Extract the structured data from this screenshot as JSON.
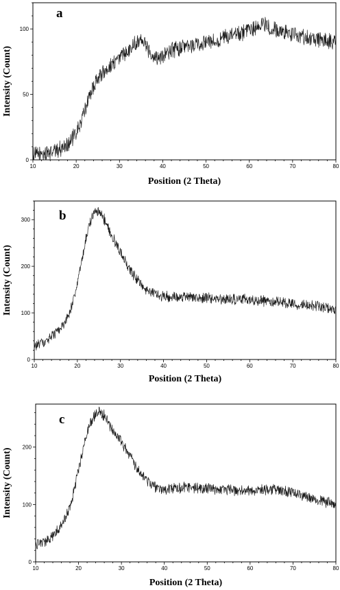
{
  "chart_data": [
    {
      "type": "line",
      "panel_label": "a",
      "xlabel": "Position (2 Theta)",
      "ylabel": "Intensity (Count)",
      "xlim": [
        10,
        80
      ],
      "ylim": [
        0,
        120
      ],
      "xticks": [
        10,
        20,
        30,
        40,
        50,
        60,
        70,
        80
      ],
      "yticks": [
        0,
        50,
        100
      ],
      "noise": 7,
      "series": [
        {
          "x": [
            10,
            12,
            14,
            16,
            18,
            20,
            21,
            22,
            23,
            24,
            25,
            26,
            28,
            30,
            32,
            34,
            35,
            36,
            38,
            40,
            42,
            45,
            48,
            50,
            55,
            60,
            63,
            65,
            70,
            75,
            80
          ],
          "y": [
            4,
            4,
            6,
            8,
            12,
            20,
            28,
            38,
            48,
            56,
            62,
            66,
            72,
            78,
            84,
            90,
            94,
            88,
            78,
            80,
            84,
            86,
            88,
            90,
            94,
            98,
            104,
            100,
            96,
            92,
            90
          ]
        }
      ]
    },
    {
      "type": "line",
      "panel_label": "b",
      "xlabel": "Position (2 Theta)",
      "ylabel": "Intensity (Count)",
      "xlim": [
        10,
        80
      ],
      "ylim": [
        0,
        340
      ],
      "xticks": [
        10,
        20,
        30,
        40,
        50,
        60,
        70,
        80
      ],
      "yticks": [
        0,
        100,
        200,
        300
      ],
      "noise": 13,
      "series": [
        {
          "x": [
            10,
            12,
            14,
            16,
            18,
            20,
            21,
            22,
            23,
            24,
            25,
            26,
            27,
            28,
            30,
            32,
            34,
            36,
            38,
            40,
            45,
            50,
            55,
            60,
            65,
            70,
            75,
            80
          ],
          "y": [
            28,
            35,
            48,
            65,
            95,
            160,
            210,
            260,
            295,
            315,
            318,
            305,
            285,
            265,
            230,
            195,
            170,
            150,
            140,
            135,
            135,
            132,
            130,
            128,
            125,
            120,
            115,
            105
          ]
        }
      ]
    },
    {
      "type": "line",
      "panel_label": "c",
      "xlabel": "Position (2 Theta)",
      "ylabel": "Intensity (Count)",
      "xlim": [
        10,
        80
      ],
      "ylim": [
        0,
        275
      ],
      "xticks": [
        10,
        20,
        30,
        40,
        50,
        60,
        70,
        80
      ],
      "yticks": [
        0,
        100,
        200
      ],
      "noise": 11,
      "series": [
        {
          "x": [
            10,
            12,
            14,
            16,
            18,
            20,
            21,
            22,
            23,
            24,
            25,
            26,
            27,
            28,
            30,
            32,
            34,
            36,
            38,
            40,
            45,
            50,
            55,
            60,
            65,
            70,
            75,
            80
          ],
          "y": [
            28,
            35,
            45,
            65,
            95,
            160,
            195,
            225,
            245,
            258,
            262,
            255,
            242,
            228,
            210,
            185,
            160,
            140,
            128,
            125,
            130,
            128,
            125,
            124,
            126,
            120,
            110,
            100
          ]
        }
      ]
    }
  ]
}
